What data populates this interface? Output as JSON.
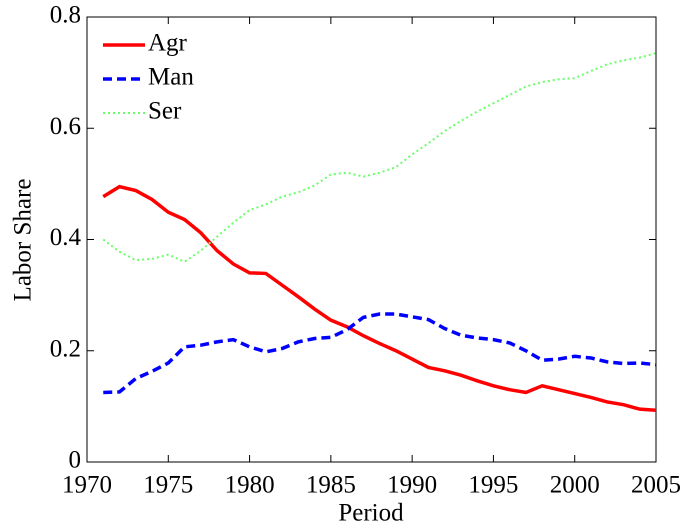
{
  "chart_data": {
    "type": "line",
    "xlabel": "Period",
    "ylabel": "Labor Share",
    "x": [
      1971,
      1972,
      1973,
      1974,
      1975,
      1976,
      1977,
      1978,
      1979,
      1980,
      1981,
      1982,
      1983,
      1984,
      1985,
      1986,
      1987,
      1988,
      1989,
      1990,
      1991,
      1992,
      1993,
      1994,
      1995,
      1996,
      1997,
      1998,
      1999,
      2000,
      2001,
      2002,
      2003,
      2004,
      2005
    ],
    "series": [
      {
        "name": "Agr",
        "color": "#ff0000",
        "dash": "solid",
        "values": [
          0.477,
          0.495,
          0.488,
          0.472,
          0.449,
          0.436,
          0.412,
          0.38,
          0.356,
          0.34,
          0.339,
          0.318,
          0.297,
          0.275,
          0.255,
          0.243,
          0.227,
          0.213,
          0.2,
          0.185,
          0.17,
          0.164,
          0.156,
          0.146,
          0.137,
          0.13,
          0.125,
          0.137,
          0.13,
          0.123,
          0.116,
          0.108,
          0.103,
          0.095,
          0.093
        ]
      },
      {
        "name": "Man",
        "color": "#0000ff",
        "dash": "dashed",
        "values": [
          0.125,
          0.126,
          0.15,
          0.163,
          0.178,
          0.207,
          0.21,
          0.216,
          0.22,
          0.207,
          0.198,
          0.204,
          0.216,
          0.222,
          0.224,
          0.238,
          0.26,
          0.266,
          0.266,
          0.261,
          0.256,
          0.24,
          0.228,
          0.223,
          0.22,
          0.214,
          0.2,
          0.183,
          0.185,
          0.19,
          0.187,
          0.18,
          0.177,
          0.178,
          0.175
        ]
      },
      {
        "name": "Ser",
        "color": "#66ff66",
        "dash": "dotted",
        "values": [
          0.4,
          0.378,
          0.363,
          0.365,
          0.373,
          0.36,
          0.38,
          0.405,
          0.43,
          0.453,
          0.463,
          0.477,
          0.485,
          0.497,
          0.517,
          0.52,
          0.513,
          0.52,
          0.53,
          0.553,
          0.573,
          0.595,
          0.613,
          0.63,
          0.645,
          0.66,
          0.675,
          0.683,
          0.688,
          0.69,
          0.703,
          0.715,
          0.722,
          0.727,
          0.735
        ]
      }
    ],
    "xlim": [
      1970,
      2005
    ],
    "xticks": [
      1970,
      1975,
      1980,
      1985,
      1990,
      1995,
      2000,
      2005
    ],
    "ylim": [
      0,
      0.8
    ],
    "yticks": [
      0,
      0.2,
      0.4,
      0.6,
      0.8
    ],
    "legend": "upper-left",
    "grid": false
  }
}
